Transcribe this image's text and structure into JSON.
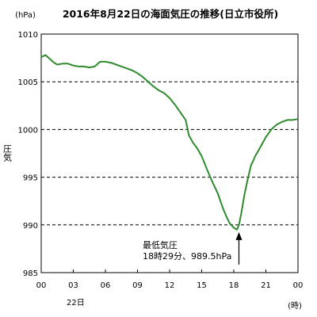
{
  "chart_data": {
    "type": "line",
    "title": "2016年8月22日の海面気圧の推移(日立市役所)",
    "ylabel": "圧気",
    "yunit": "(hPa)",
    "xunit": "(時)",
    "date_label": "22日",
    "ylim": [
      985,
      1010
    ],
    "yticks": [
      "985",
      "990",
      "995",
      "1000",
      "1005",
      "1010"
    ],
    "xlim": [
      0,
      24
    ],
    "xticks": [
      "00",
      "03",
      "06",
      "09",
      "12",
      "15",
      "18",
      "21",
      "00"
    ],
    "grid": "horizontal-dashed",
    "series": [
      {
        "color": "#2e8b2e",
        "x": [
          0.0,
          0.4,
          0.8,
          1.2,
          1.5,
          2.0,
          2.5,
          3.0,
          3.5,
          4.0,
          4.5,
          5.0,
          5.5,
          6.0,
          6.5,
          7.0,
          7.5,
          8.0,
          8.5,
          9.0,
          9.5,
          10.0,
          10.5,
          11.0,
          11.5,
          12.0,
          12.5,
          13.0,
          13.5,
          13.8,
          14.2,
          14.6,
          15.0,
          15.5,
          16.0,
          16.5,
          17.0,
          17.3,
          17.6,
          18.0,
          18.3,
          18.5,
          18.7,
          19.0,
          19.3,
          19.6,
          20.0,
          20.5,
          21.0,
          21.5,
          22.0,
          22.5,
          23.0,
          23.5,
          24.0
        ],
        "y": [
          1007.6,
          1007.8,
          1007.4,
          1007.0,
          1006.8,
          1006.9,
          1006.9,
          1006.7,
          1006.6,
          1006.6,
          1006.5,
          1006.6,
          1007.1,
          1007.1,
          1007.0,
          1006.8,
          1006.6,
          1006.4,
          1006.2,
          1005.9,
          1005.5,
          1005.0,
          1004.5,
          1004.1,
          1003.8,
          1003.3,
          1002.6,
          1001.8,
          1001.0,
          999.4,
          998.6,
          998.0,
          997.2,
          995.8,
          994.5,
          993.3,
          991.7,
          990.9,
          990.2,
          989.7,
          989.5,
          990.1,
          991.2,
          993.2,
          994.8,
          996.2,
          997.2,
          998.2,
          999.2,
          1000.0,
          1000.5,
          1000.8,
          1001.0,
          1001.0,
          1001.1
        ]
      }
    ],
    "annotation": {
      "label_line1": "最低気圧",
      "label_line2": "18時29分、989.5hPa",
      "x": 18.48,
      "y": 989.5
    }
  }
}
